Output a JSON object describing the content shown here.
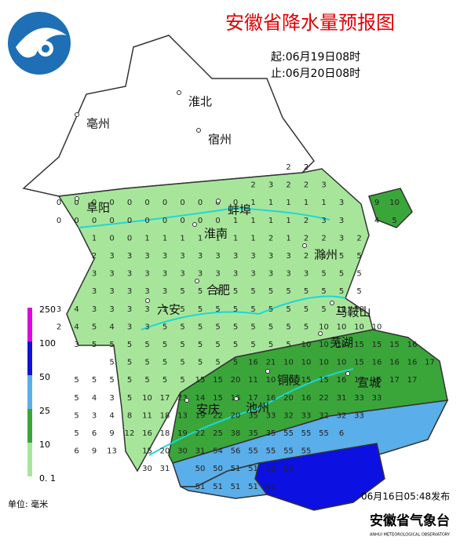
{
  "header": {
    "title": "安徽省降水量预报图",
    "start": "起:06月19日08时",
    "end": "止:06月20日08时"
  },
  "cities": [
    "亳州",
    "淮北",
    "宿州",
    "阜阳",
    "蚌埠",
    "淮南",
    "滁州",
    "合肥",
    "六安",
    "马鞍山",
    "芜湖",
    "铜陵",
    "宣城",
    "安庆",
    "池州"
  ],
  "grid": [
    [
      null,
      null,
      null,
      null,
      null,
      null,
      null,
      null,
      null,
      null,
      null,
      null,
      null,
      2,
      2
    ],
    [
      null,
      null,
      null,
      null,
      null,
      null,
      null,
      null,
      null,
      null,
      null,
      2,
      3,
      2,
      2,
      3
    ],
    [
      0,
      0,
      0,
      0,
      0,
      0,
      0,
      0,
      0,
      0,
      0,
      1,
      1,
      1,
      1,
      1,
      3,
      null,
      9,
      10
    ],
    [
      0,
      0,
      0,
      0,
      0,
      0,
      0,
      0,
      0,
      0,
      1,
      1,
      1,
      1,
      2,
      3,
      3,
      null,
      4,
      5
    ],
    [
      null,
      null,
      1,
      0,
      0,
      1,
      1,
      1,
      1,
      1,
      1,
      1,
      2,
      1,
      2,
      2,
      3,
      2
    ],
    [
      null,
      null,
      2,
      3,
      3,
      3,
      3,
      3,
      3,
      3,
      3,
      3,
      3,
      3,
      2,
      5,
      5,
      5
    ],
    [
      null,
      null,
      3,
      3,
      3,
      3,
      3,
      3,
      3,
      3,
      3,
      3,
      3,
      3,
      3,
      5,
      5,
      5
    ],
    [
      null,
      null,
      3,
      3,
      3,
      3,
      3,
      5,
      5,
      5,
      5,
      5,
      5,
      5,
      5,
      5,
      5,
      5
    ],
    [
      3,
      4,
      3,
      3,
      3,
      3,
      3,
      5,
      5,
      5,
      5,
      5,
      5,
      5,
      5,
      5,
      10,
      10
    ],
    [
      2,
      4,
      5,
      4,
      3,
      3,
      5,
      5,
      5,
      5,
      5,
      5,
      5,
      5,
      5,
      10,
      10,
      10,
      10
    ],
    [
      null,
      3,
      5,
      5,
      5,
      5,
      5,
      5,
      5,
      5,
      5,
      5,
      5,
      5,
      10,
      10,
      10,
      15,
      15,
      15,
      16
    ],
    [
      null,
      null,
      null,
      5,
      5,
      5,
      5,
      5,
      5,
      5,
      5,
      16,
      21,
      10,
      10,
      10,
      10,
      15,
      16,
      16,
      16,
      17
    ],
    [
      null,
      5,
      5,
      5,
      5,
      5,
      5,
      5,
      15,
      15,
      20,
      11,
      10,
      10,
      15,
      15,
      16,
      17,
      16,
      17,
      17
    ],
    [
      null,
      5,
      4,
      3,
      5,
      10,
      17,
      23,
      14,
      15,
      16,
      17,
      16,
      20,
      16,
      22,
      31,
      33,
      33
    ],
    [
      null,
      5,
      3,
      4,
      8,
      11,
      18,
      13,
      19,
      22,
      20,
      35,
      33,
      32,
      33,
      32,
      32,
      33
    ],
    [
      null,
      5,
      6,
      9,
      12,
      16,
      18,
      19,
      22,
      25,
      38,
      35,
      35,
      55,
      55,
      55,
      6
    ],
    [
      null,
      6,
      9,
      13,
      null,
      15,
      20,
      30,
      31,
      54,
      56,
      55,
      55,
      55,
      55
    ],
    [
      null,
      null,
      null,
      null,
      null,
      30,
      31,
      null,
      50,
      50,
      51,
      51,
      52,
      53
    ],
    [
      null,
      null,
      null,
      null,
      null,
      null,
      null,
      null,
      51,
      51,
      51,
      51,
      51
    ]
  ],
  "legend": {
    "labels": [
      "250",
      "100",
      "50",
      "25",
      "10",
      "0. 1"
    ],
    "unit": "单位: 毫米"
  },
  "footer": {
    "issued": "06月16日05:48发布",
    "org": "安徽省气象台",
    "org_en": "ANHUI METEOROLOGICAL OBSERVATORY"
  }
}
